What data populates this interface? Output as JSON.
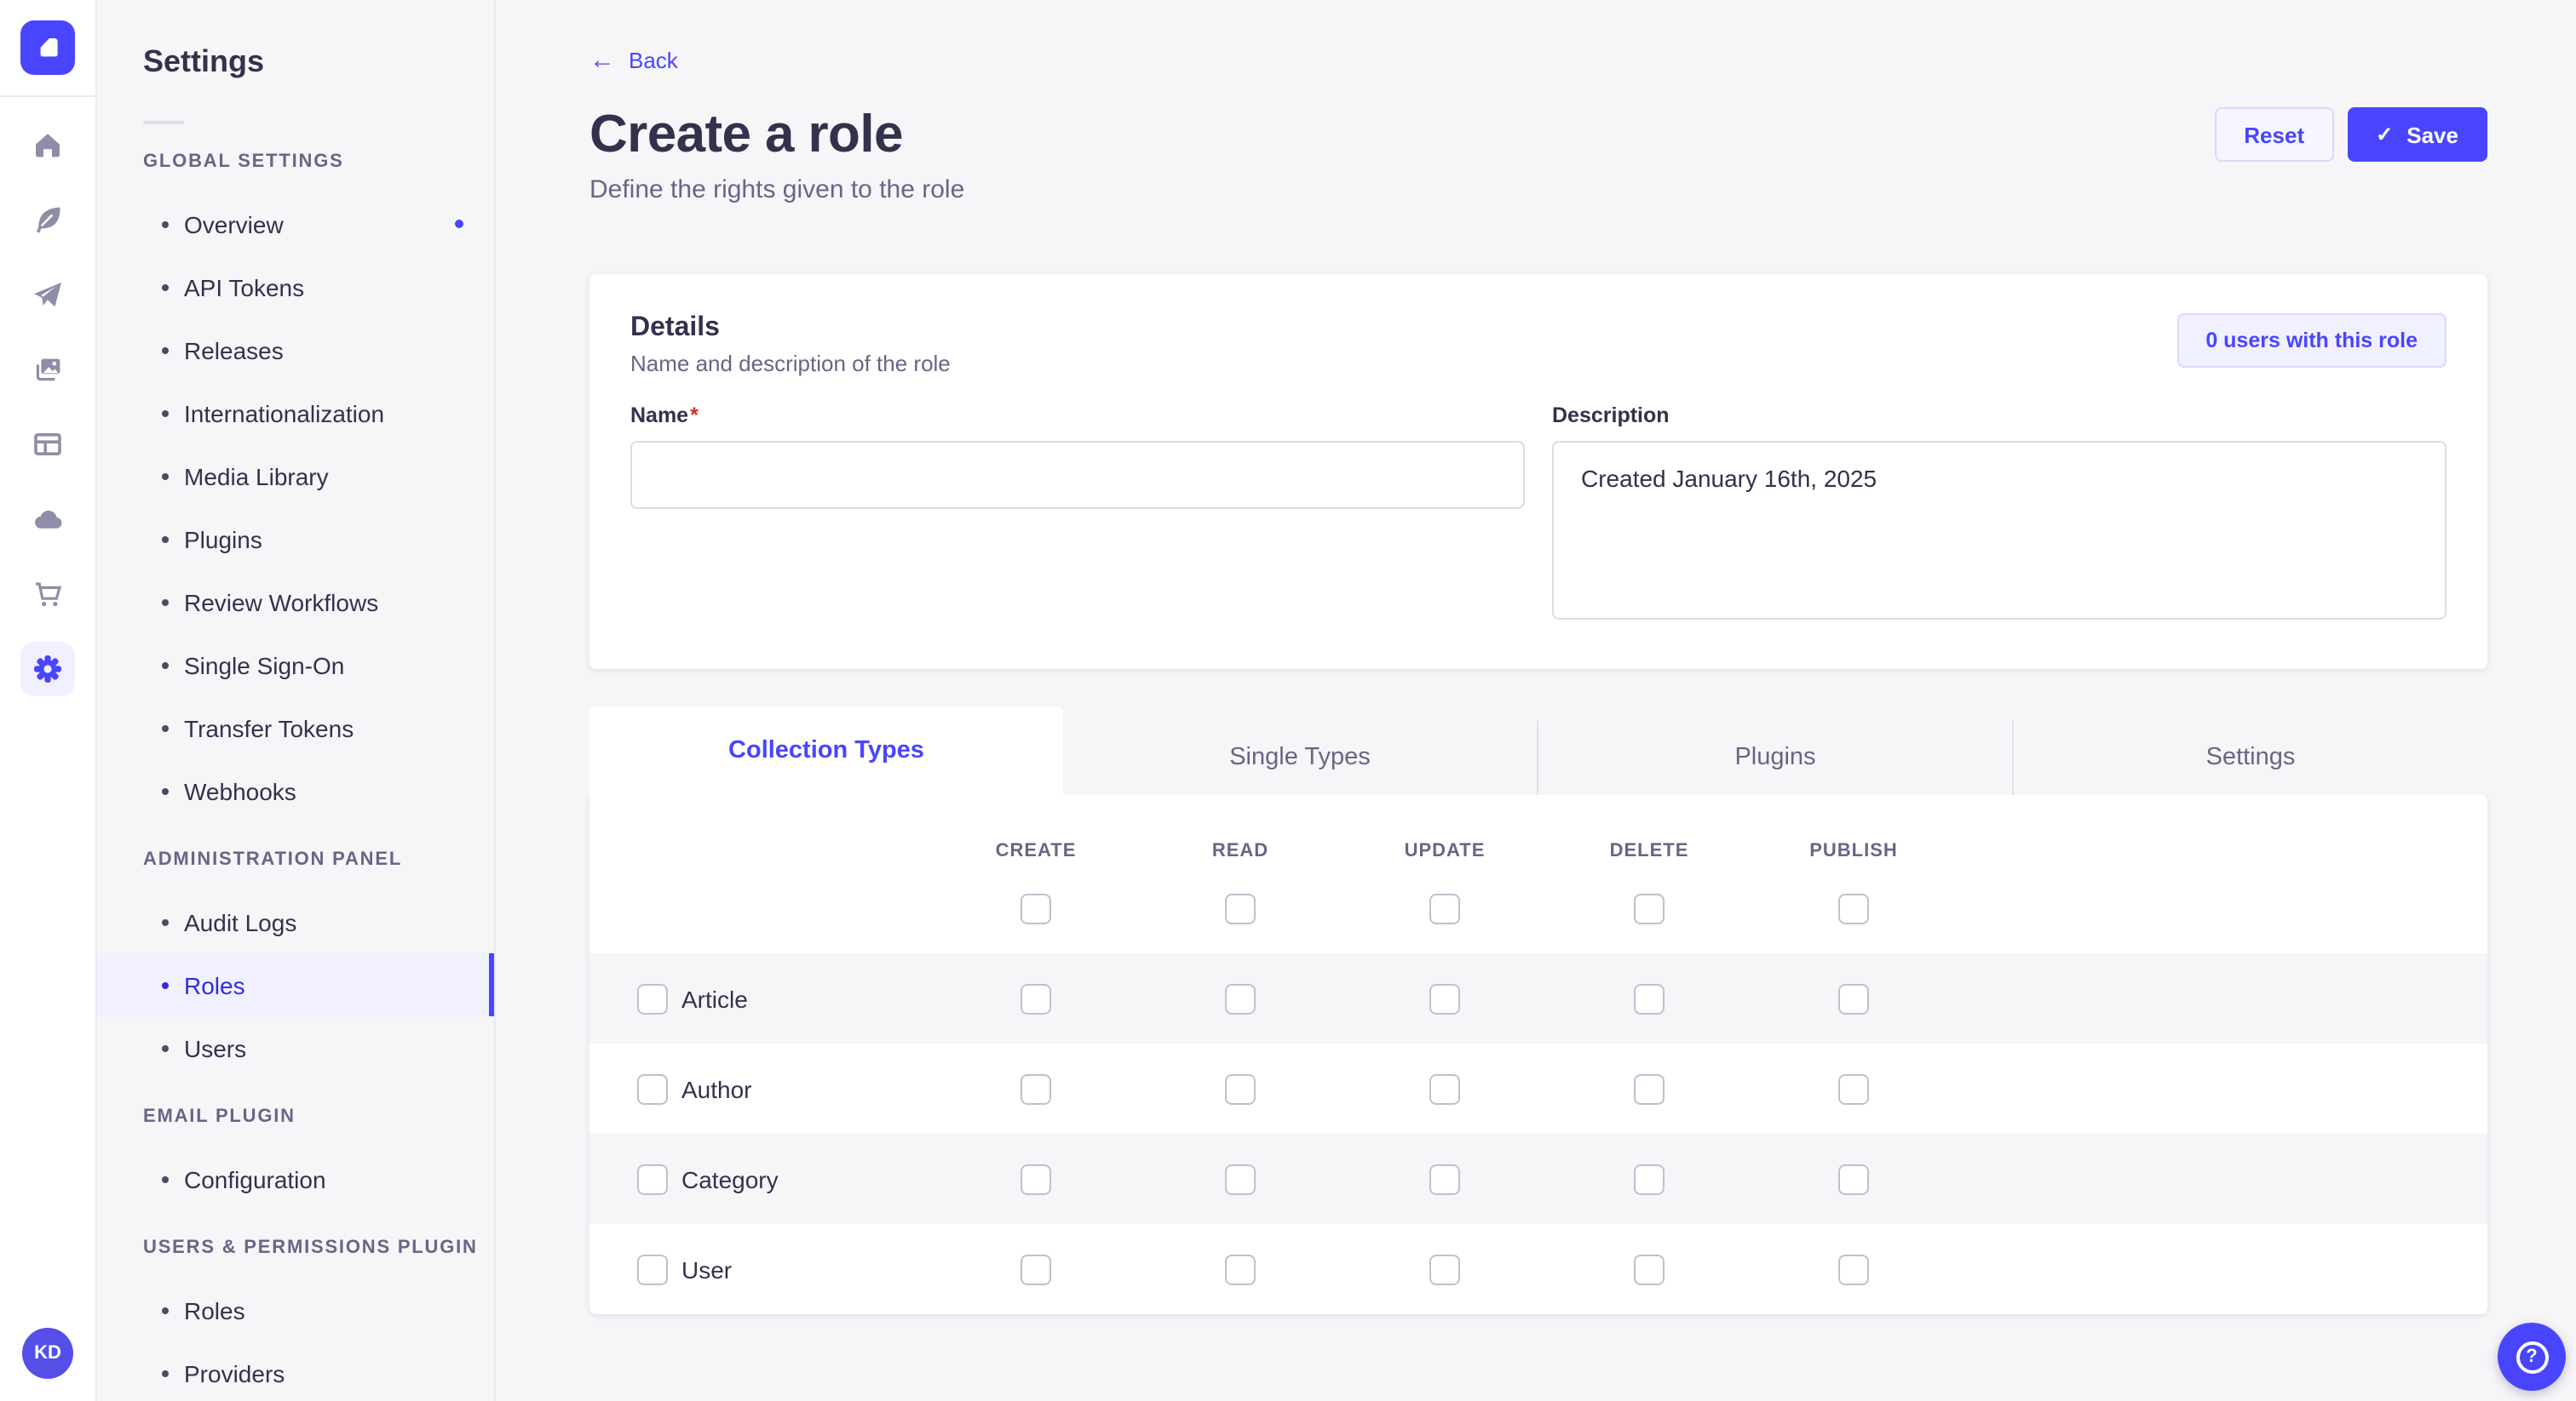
{
  "colors": {
    "accent": "#4945ff",
    "accent_dark": "#2f2ce0",
    "accent_bg": "#f0f0ff",
    "accent_border": "#d9d8ff",
    "page_bg": "#f6f6f9",
    "border": "#eaeaef",
    "text": "#32324d",
    "text_muted": "#666687",
    "required": "#d02b20"
  },
  "rail": {
    "logo": "strapi-logo",
    "icons": [
      "home-icon",
      "feather-icon",
      "paper-plane-icon",
      "images-icon",
      "layout-icon",
      "cloud-icon",
      "cart-icon",
      "gear-icon"
    ],
    "active_icon": "gear-icon",
    "avatar_initials": "KD"
  },
  "sidebar": {
    "title": "Settings",
    "sections": [
      {
        "label": "GLOBAL SETTINGS",
        "items": [
          {
            "label": "Overview",
            "notification": true
          },
          {
            "label": "API Tokens"
          },
          {
            "label": "Releases"
          },
          {
            "label": "Internationalization"
          },
          {
            "label": "Media Library"
          },
          {
            "label": "Plugins"
          },
          {
            "label": "Review Workflows"
          },
          {
            "label": "Single Sign-On"
          },
          {
            "label": "Transfer Tokens"
          },
          {
            "label": "Webhooks"
          }
        ]
      },
      {
        "label": "ADMINISTRATION PANEL",
        "items": [
          {
            "label": "Audit Logs"
          },
          {
            "label": "Roles",
            "active": true
          },
          {
            "label": "Users"
          }
        ]
      },
      {
        "label": "EMAIL PLUGIN",
        "items": [
          {
            "label": "Configuration"
          }
        ]
      },
      {
        "label": "USERS & PERMISSIONS PLUGIN",
        "items": [
          {
            "label": "Roles"
          },
          {
            "label": "Providers"
          }
        ]
      }
    ]
  },
  "header": {
    "back_label": "Back",
    "title": "Create a role",
    "subtitle": "Define the rights given to the role",
    "reset_label": "Reset",
    "save_label": "Save",
    "save_check": "✓",
    "back_arrow": "←"
  },
  "details": {
    "title": "Details",
    "subtitle": "Name and description of the role",
    "users_button_label": "0 users with this role",
    "name_label": "Name",
    "name_required_mark": "*",
    "name_value": "",
    "description_label": "Description",
    "description_value": "Created January 16th, 2025"
  },
  "permissions": {
    "tabs": [
      {
        "label": "Collection Types",
        "active": true
      },
      {
        "label": "Single Types"
      },
      {
        "label": "Plugins"
      },
      {
        "label": "Settings"
      }
    ],
    "columns": [
      "CREATE",
      "READ",
      "UPDATE",
      "DELETE",
      "PUBLISH"
    ],
    "rows": [
      {
        "label": "Article",
        "checked": [
          false,
          false,
          false,
          false,
          false
        ]
      },
      {
        "label": "Author",
        "checked": [
          false,
          false,
          false,
          false,
          false
        ]
      },
      {
        "label": "Category",
        "checked": [
          false,
          false,
          false,
          false,
          false
        ]
      },
      {
        "label": "User",
        "checked": [
          false,
          false,
          false,
          false,
          false
        ]
      }
    ],
    "header_checked": [
      false,
      false,
      false,
      false,
      false
    ]
  },
  "help": {
    "icon": "question-mark-icon",
    "glyph": "?"
  }
}
